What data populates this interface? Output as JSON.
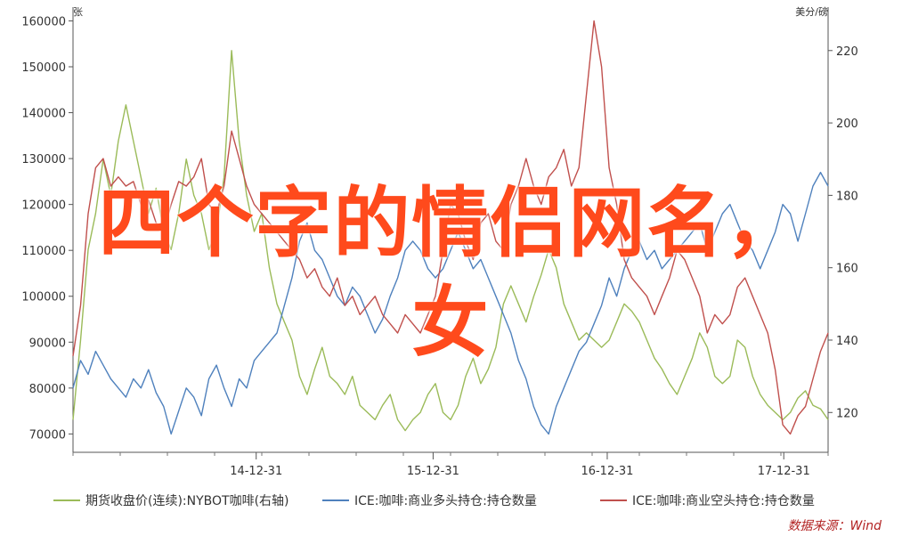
{
  "chart_data": {
    "type": "line",
    "axes": {
      "left_unit": "张",
      "right_unit": "美分/磅",
      "left_ticks": [
        "160000",
        "150000",
        "140000",
        "130000",
        "120000",
        "110000",
        "100000",
        "90000",
        "80000",
        "70000"
      ],
      "left_values": [
        160000,
        150000,
        140000,
        130000,
        120000,
        110000,
        100000,
        90000,
        80000,
        70000
      ],
      "left_range": [
        66000,
        163000
      ],
      "right_ticks": [
        "220",
        "200",
        "180",
        "160",
        "140",
        "120"
      ],
      "right_values": [
        220,
        200,
        180,
        160,
        140,
        120
      ],
      "right_range": [
        109,
        232
      ],
      "x_ticks": [
        "14-12-31",
        "15-12-31",
        "16-12-31",
        "17-12-31"
      ],
      "x_tick_positions": [
        0.2426,
        0.4769,
        0.7075,
        0.9413
      ],
      "x_range": [
        0,
        1
      ]
    },
    "legend_position": "bottom",
    "series": [
      {
        "name": "期货收盘价(连续):NYBOT咖啡(右轴)",
        "axis": "right",
        "color": "#9bbb59",
        "x": [
          0,
          0.01,
          0.02,
          0.03,
          0.04,
          0.05,
          0.06,
          0.07,
          0.08,
          0.09,
          0.1,
          0.11,
          0.12,
          0.13,
          0.14,
          0.15,
          0.16,
          0.17,
          0.18,
          0.19,
          0.2,
          0.21,
          0.22,
          0.23,
          0.24,
          0.25,
          0.26,
          0.27,
          0.28,
          0.29,
          0.3,
          0.31,
          0.32,
          0.33,
          0.34,
          0.35,
          0.36,
          0.37,
          0.38,
          0.39,
          0.4,
          0.41,
          0.42,
          0.43,
          0.44,
          0.45,
          0.46,
          0.47,
          0.48,
          0.49,
          0.5,
          0.51,
          0.52,
          0.53,
          0.54,
          0.55,
          0.56,
          0.57,
          0.58,
          0.59,
          0.6,
          0.61,
          0.62,
          0.63,
          0.64,
          0.65,
          0.66,
          0.67,
          0.68,
          0.69,
          0.7,
          0.71,
          0.72,
          0.73,
          0.74,
          0.75,
          0.76,
          0.77,
          0.78,
          0.79,
          0.8,
          0.81,
          0.82,
          0.83,
          0.84,
          0.85,
          0.86,
          0.87,
          0.88,
          0.89,
          0.9,
          0.91,
          0.92,
          0.93,
          0.94,
          0.95,
          0.96,
          0.97,
          0.98,
          0.99,
          1.0
        ],
        "values": [
          118,
          140,
          165,
          175,
          190,
          180,
          195,
          205,
          195,
          185,
          175,
          182,
          170,
          165,
          175,
          190,
          180,
          175,
          165,
          170,
          185,
          220,
          195,
          180,
          170,
          175,
          160,
          150,
          145,
          140,
          130,
          125,
          132,
          138,
          130,
          128,
          125,
          130,
          122,
          120,
          118,
          122,
          125,
          118,
          115,
          118,
          120,
          125,
          128,
          120,
          118,
          122,
          130,
          135,
          128,
          132,
          138,
          150,
          155,
          150,
          145,
          152,
          158,
          165,
          160,
          150,
          145,
          140,
          142,
          140,
          138,
          140,
          145,
          150,
          148,
          145,
          140,
          135,
          132,
          128,
          125,
          130,
          135,
          142,
          138,
          130,
          128,
          130,
          140,
          138,
          130,
          125,
          122,
          120,
          118,
          120,
          124,
          126,
          122,
          121,
          118
        ]
      },
      {
        "name": "ICE:咖啡:商业多头持仓:持仓数量",
        "axis": "left",
        "color": "#4f81bd",
        "x": [
          0,
          0.01,
          0.02,
          0.03,
          0.04,
          0.05,
          0.06,
          0.07,
          0.08,
          0.09,
          0.1,
          0.11,
          0.12,
          0.13,
          0.14,
          0.15,
          0.16,
          0.17,
          0.18,
          0.19,
          0.2,
          0.21,
          0.22,
          0.23,
          0.24,
          0.25,
          0.26,
          0.27,
          0.28,
          0.29,
          0.3,
          0.31,
          0.32,
          0.33,
          0.34,
          0.35,
          0.36,
          0.37,
          0.38,
          0.39,
          0.4,
          0.41,
          0.42,
          0.43,
          0.44,
          0.45,
          0.46,
          0.47,
          0.48,
          0.49,
          0.5,
          0.51,
          0.52,
          0.53,
          0.54,
          0.55,
          0.56,
          0.57,
          0.58,
          0.59,
          0.6,
          0.61,
          0.62,
          0.63,
          0.64,
          0.65,
          0.66,
          0.67,
          0.68,
          0.69,
          0.7,
          0.71,
          0.72,
          0.73,
          0.74,
          0.75,
          0.76,
          0.77,
          0.78,
          0.79,
          0.8,
          0.81,
          0.82,
          0.83,
          0.84,
          0.85,
          0.86,
          0.87,
          0.88,
          0.89,
          0.9,
          0.91,
          0.92,
          0.93,
          0.94,
          0.95,
          0.96,
          0.97,
          0.98,
          0.99,
          1.0
        ],
        "values": [
          80000,
          86000,
          83000,
          88000,
          85000,
          82000,
          80000,
          78000,
          82000,
          80000,
          84000,
          79000,
          76000,
          70000,
          75000,
          80000,
          78000,
          74000,
          82000,
          85000,
          80000,
          76000,
          82000,
          80000,
          86000,
          88000,
          90000,
          92000,
          98000,
          104000,
          112000,
          116000,
          110000,
          108000,
          104000,
          100000,
          98000,
          102000,
          100000,
          96000,
          92000,
          95000,
          100000,
          104000,
          110000,
          112000,
          110000,
          106000,
          104000,
          106000,
          110000,
          114000,
          110000,
          106000,
          108000,
          104000,
          100000,
          96000,
          92000,
          86000,
          82000,
          76000,
          72000,
          70000,
          76000,
          80000,
          84000,
          88000,
          90000,
          94000,
          98000,
          104000,
          100000,
          106000,
          110000,
          112000,
          108000,
          110000,
          106000,
          108000,
          110000,
          112000,
          114000,
          116000,
          110000,
          114000,
          118000,
          120000,
          116000,
          112000,
          110000,
          106000,
          110000,
          114000,
          120000,
          118000,
          112000,
          118000,
          124000,
          127000,
          124000
        ]
      },
      {
        "name": "ICE:咖啡:商业空头持仓:持仓数量",
        "axis": "left",
        "color": "#c0504d",
        "x": [
          0,
          0.01,
          0.02,
          0.03,
          0.04,
          0.05,
          0.06,
          0.07,
          0.08,
          0.09,
          0.1,
          0.11,
          0.12,
          0.13,
          0.14,
          0.15,
          0.16,
          0.17,
          0.18,
          0.19,
          0.2,
          0.21,
          0.22,
          0.23,
          0.24,
          0.25,
          0.26,
          0.27,
          0.28,
          0.29,
          0.3,
          0.31,
          0.32,
          0.33,
          0.34,
          0.35,
          0.36,
          0.37,
          0.38,
          0.39,
          0.4,
          0.41,
          0.42,
          0.43,
          0.44,
          0.45,
          0.46,
          0.47,
          0.48,
          0.49,
          0.5,
          0.51,
          0.52,
          0.53,
          0.54,
          0.55,
          0.56,
          0.57,
          0.58,
          0.59,
          0.6,
          0.61,
          0.62,
          0.63,
          0.64,
          0.65,
          0.66,
          0.67,
          0.68,
          0.69,
          0.7,
          0.71,
          0.72,
          0.73,
          0.74,
          0.75,
          0.76,
          0.77,
          0.78,
          0.79,
          0.8,
          0.81,
          0.82,
          0.83,
          0.84,
          0.85,
          0.86,
          0.87,
          0.88,
          0.89,
          0.9,
          0.91,
          0.92,
          0.93,
          0.94,
          0.95,
          0.96,
          0.97,
          0.98,
          0.99,
          1.0
        ],
        "values": [
          87000,
          98000,
          118000,
          128000,
          130000,
          124000,
          126000,
          124000,
          125000,
          120000,
          121000,
          116000,
          114000,
          120000,
          125000,
          124000,
          126000,
          130000,
          120000,
          118000,
          124000,
          136000,
          130000,
          124000,
          120000,
          118000,
          116000,
          114000,
          112000,
          110000,
          108000,
          104000,
          106000,
          102000,
          100000,
          104000,
          98000,
          100000,
          96000,
          98000,
          100000,
          96000,
          94000,
          92000,
          96000,
          94000,
          92000,
          96000,
          100000,
          110000,
          120000,
          118000,
          112000,
          108000,
          116000,
          118000,
          112000,
          110000,
          120000,
          124000,
          130000,
          124000,
          120000,
          126000,
          128000,
          132000,
          124000,
          128000,
          144000,
          160000,
          150000,
          128000,
          120000,
          108000,
          104000,
          102000,
          100000,
          96000,
          100000,
          104000,
          110000,
          108000,
          104000,
          100000,
          92000,
          96000,
          94000,
          96000,
          102000,
          104000,
          100000,
          96000,
          92000,
          84000,
          72000,
          70000,
          74000,
          76000,
          82000,
          88000,
          92000
        ]
      }
    ],
    "overlay_title_line1": "四个字的情侣网名，",
    "overlay_title_line2": "女",
    "source": "数据来源：Wind"
  }
}
